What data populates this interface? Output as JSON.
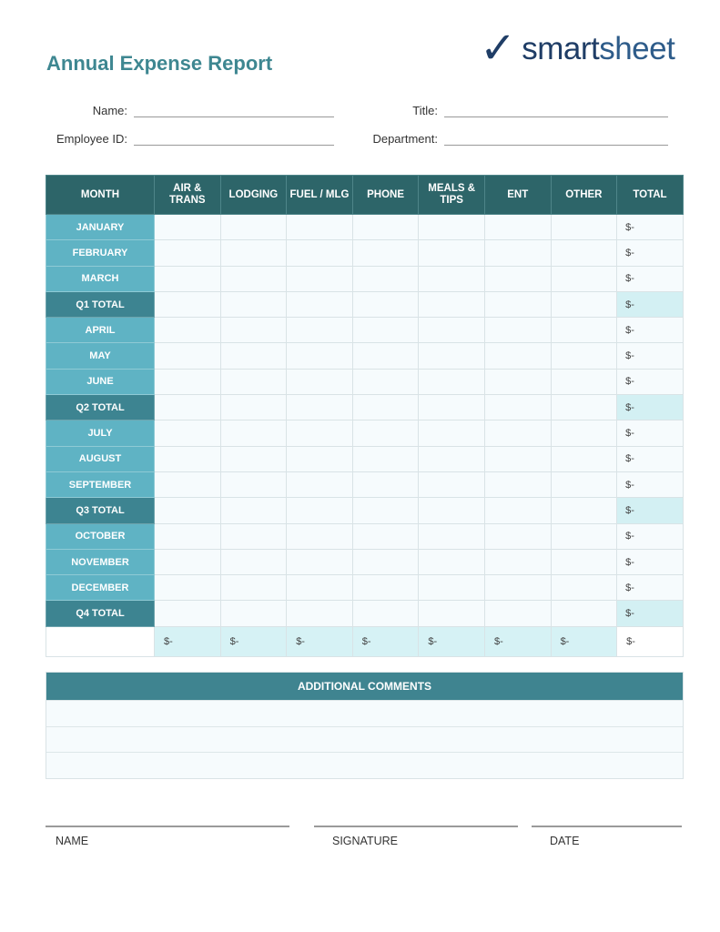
{
  "header": {
    "title": "Annual Expense Report",
    "logo": {
      "text_bold": "smart",
      "text_light": "sheet",
      "icon": "checkmark-icon"
    }
  },
  "fields": {
    "name_label": "Name:",
    "title_label": "Title:",
    "employee_id_label": "Employee ID:",
    "department_label": "Department:",
    "name_value": "",
    "title_value": "",
    "employee_id_value": "",
    "department_value": ""
  },
  "table": {
    "columns": [
      "MONTH",
      "AIR & TRANS",
      "LODGING",
      "FUEL / MLG",
      "PHONE",
      "MEALS & TIPS",
      "ENT",
      "OTHER",
      "TOTAL"
    ],
    "rows": [
      {
        "label": "JANUARY",
        "quarter": false,
        "total": "$-"
      },
      {
        "label": "FEBRUARY",
        "quarter": false,
        "total": "$-"
      },
      {
        "label": "MARCH",
        "quarter": false,
        "total": "$-"
      },
      {
        "label": "Q1 TOTAL",
        "quarter": true,
        "total": "$-"
      },
      {
        "label": "APRIL",
        "quarter": false,
        "total": "$-"
      },
      {
        "label": "MAY",
        "quarter": false,
        "total": "$-"
      },
      {
        "label": "JUNE",
        "quarter": false,
        "total": "$-"
      },
      {
        "label": "Q2 TOTAL",
        "quarter": true,
        "total": "$-"
      },
      {
        "label": "JULY",
        "quarter": false,
        "total": "$-"
      },
      {
        "label": "AUGUST",
        "quarter": false,
        "total": "$-"
      },
      {
        "label": "SEPTEMBER",
        "quarter": false,
        "total": "$-"
      },
      {
        "label": "Q3 TOTAL",
        "quarter": true,
        "total": "$-"
      },
      {
        "label": "OCTOBER",
        "quarter": false,
        "total": "$-"
      },
      {
        "label": "NOVEMBER",
        "quarter": false,
        "total": "$-"
      },
      {
        "label": "DECEMBER",
        "quarter": false,
        "total": "$-"
      },
      {
        "label": "Q4 TOTAL",
        "quarter": true,
        "total": "$-"
      }
    ],
    "column_totals": [
      "$-",
      "$-",
      "$-",
      "$-",
      "$-",
      "$-",
      "$-",
      "$-"
    ]
  },
  "comments": {
    "header": "ADDITIONAL COMMENTS",
    "lines": [
      "",
      "",
      ""
    ]
  },
  "signature": {
    "name_label": "NAME",
    "signature_label": "SIGNATURE",
    "date_label": "DATE"
  },
  "colors": {
    "header_dark": "#2d6569",
    "month_cell": "#5fb3c4",
    "quarter_cell": "#3d8491",
    "title": "#3e8791",
    "logo": "#1f3d66"
  }
}
